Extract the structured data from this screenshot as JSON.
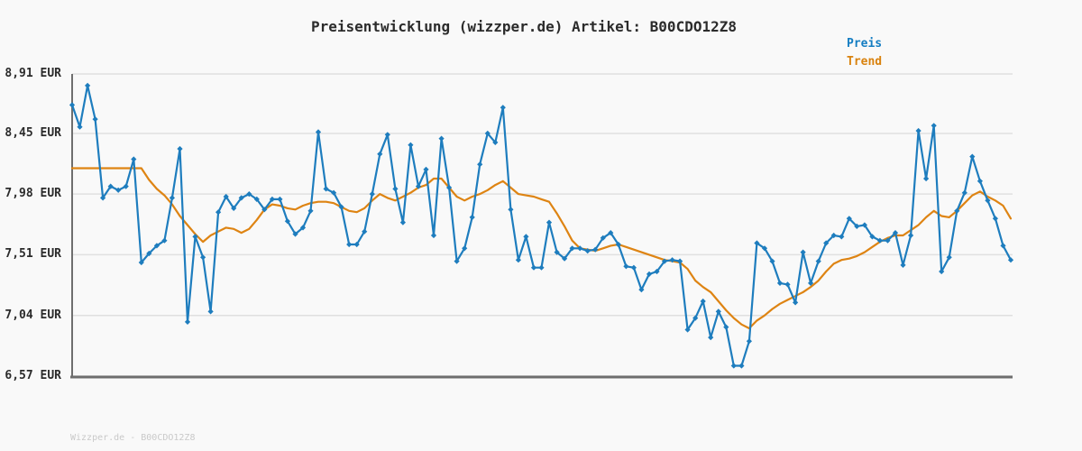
{
  "chart": {
    "title": "Preisentwicklung (wizzper.de) Artikel: B00CDO12Z8",
    "legend": [
      {
        "label": "Preis",
        "color": "#147dc2"
      },
      {
        "label": "Trend",
        "color": "#d9820e"
      }
    ],
    "watermark": "Wizzper.de - B00CDO12Z8"
  },
  "chart_data": {
    "type": "line",
    "title": "Preisentwicklung (wizzper.de) Artikel: B00CDO12Z8",
    "currency": "EUR",
    "xlabel": "",
    "ylabel": "EUR",
    "ylim": [
      6.57,
      8.91
    ],
    "grid": "horizontal",
    "legend_position": "top-right",
    "y_ticks": [
      {
        "value": 8.91,
        "label": "8,91 EUR"
      },
      {
        "value": 8.45,
        "label": "8,45 EUR"
      },
      {
        "value": 7.98,
        "label": "7,98 EUR"
      },
      {
        "value": 7.51,
        "label": "7,51 EUR"
      },
      {
        "value": 7.04,
        "label": "7,04 EUR"
      },
      {
        "value": 6.57,
        "label": "6,57 EUR"
      }
    ],
    "colors": {
      "preis": "#1e7dbe",
      "trend": "#de8413",
      "gridline": "#e0e0e0",
      "axis": "#6e6e6e",
      "text": "#2b2b2b"
    },
    "series": [
      {
        "name": "Preis",
        "color": "#1e7dbe",
        "markers": true,
        "values": [
          8.67,
          8.5,
          8.82,
          8.56,
          7.95,
          8.04,
          8.01,
          8.04,
          8.25,
          7.45,
          7.52,
          7.58,
          7.62,
          7.95,
          8.33,
          6.99,
          7.65,
          7.49,
          7.07,
          7.84,
          7.96,
          7.87,
          7.95,
          7.98,
          7.94,
          7.86,
          7.94,
          7.94,
          7.77,
          7.67,
          7.72,
          7.85,
          8.46,
          8.02,
          7.99,
          7.88,
          7.59,
          7.59,
          7.69,
          7.98,
          8.29,
          8.44,
          8.02,
          7.76,
          8.36,
          8.04,
          8.17,
          7.66,
          8.41,
          8.03,
          7.46,
          7.56,
          7.8,
          8.21,
          8.45,
          8.38,
          8.65,
          7.86,
          7.47,
          7.65,
          7.41,
          7.41,
          7.76,
          7.53,
          7.48,
          7.56,
          7.56,
          7.54,
          7.55,
          7.64,
          7.68,
          7.59,
          7.42,
          7.41,
          7.24,
          7.36,
          7.38,
          7.46,
          7.47,
          7.46,
          6.93,
          7.02,
          7.15,
          6.87,
          7.07,
          6.95,
          6.65,
          6.65,
          6.84,
          7.6,
          7.56,
          7.46,
          7.29,
          7.28,
          7.14,
          7.53,
          7.29,
          7.46,
          7.6,
          7.66,
          7.65,
          7.79,
          7.73,
          7.74,
          7.65,
          7.62,
          7.62,
          7.68,
          7.43,
          7.66,
          8.47,
          8.1,
          8.51,
          7.38,
          7.49,
          7.85,
          7.99,
          8.27,
          8.08,
          7.93,
          7.79,
          7.58,
          7.47
        ]
      },
      {
        "name": "Trend",
        "color": "#de8413",
        "markers": false,
        "values": [
          8.18,
          8.18,
          8.18,
          8.18,
          8.18,
          8.18,
          8.18,
          8.18,
          8.18,
          8.18,
          8.09,
          8.02,
          7.97,
          7.9,
          7.81,
          7.74,
          7.67,
          7.61,
          7.66,
          7.69,
          7.72,
          7.71,
          7.68,
          7.71,
          7.78,
          7.86,
          7.9,
          7.89,
          7.87,
          7.86,
          7.89,
          7.91,
          7.92,
          7.92,
          7.91,
          7.88,
          7.85,
          7.84,
          7.87,
          7.93,
          7.98,
          7.95,
          7.93,
          7.96,
          7.99,
          8.03,
          8.05,
          8.1,
          8.1,
          8.03,
          7.96,
          7.93,
          7.96,
          7.98,
          8.01,
          8.05,
          8.08,
          8.03,
          7.98,
          7.97,
          7.96,
          7.94,
          7.92,
          7.83,
          7.73,
          7.62,
          7.56,
          7.55,
          7.54,
          7.56,
          7.58,
          7.59,
          7.57,
          7.55,
          7.53,
          7.51,
          7.49,
          7.47,
          7.46,
          7.45,
          7.4,
          7.31,
          7.26,
          7.22,
          7.15,
          7.08,
          7.02,
          6.97,
          6.94,
          7.0,
          7.04,
          7.09,
          7.13,
          7.16,
          7.19,
          7.22,
          7.26,
          7.31,
          7.38,
          7.44,
          7.47,
          7.48,
          7.5,
          7.53,
          7.57,
          7.61,
          7.64,
          7.66,
          7.66,
          7.7,
          7.74,
          7.8,
          7.85,
          7.81,
          7.8,
          7.85,
          7.91,
          7.97,
          8.0,
          7.96,
          7.93,
          7.89,
          7.79
        ]
      }
    ]
  }
}
